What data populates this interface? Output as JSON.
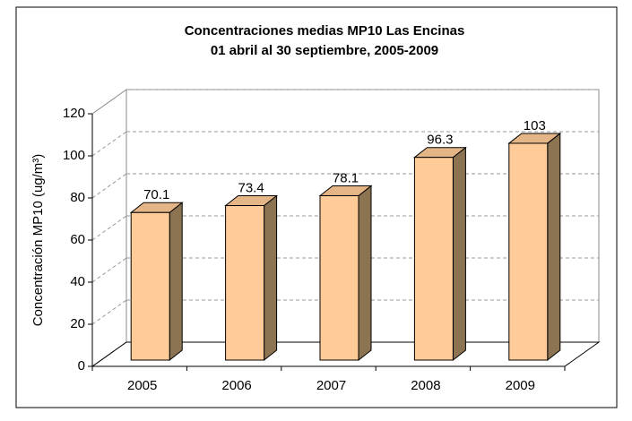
{
  "chart_data": {
    "type": "bar3d",
    "title": "Concentraciones medias MP10 Las Encinas",
    "subtitle": "01 abril al 30 septiembre, 2005-2009",
    "y_label": "Concentración MP10 (ug/m³)",
    "categories": [
      "2005",
      "2006",
      "2007",
      "2008",
      "2009"
    ],
    "values": [
      70.1,
      73.4,
      78.1,
      96.3,
      103
    ],
    "color": "#ffcc99",
    "ylim": [
      0,
      120
    ],
    "yticks": [
      0,
      20,
      40,
      60,
      80,
      100,
      120
    ],
    "grid": true
  }
}
